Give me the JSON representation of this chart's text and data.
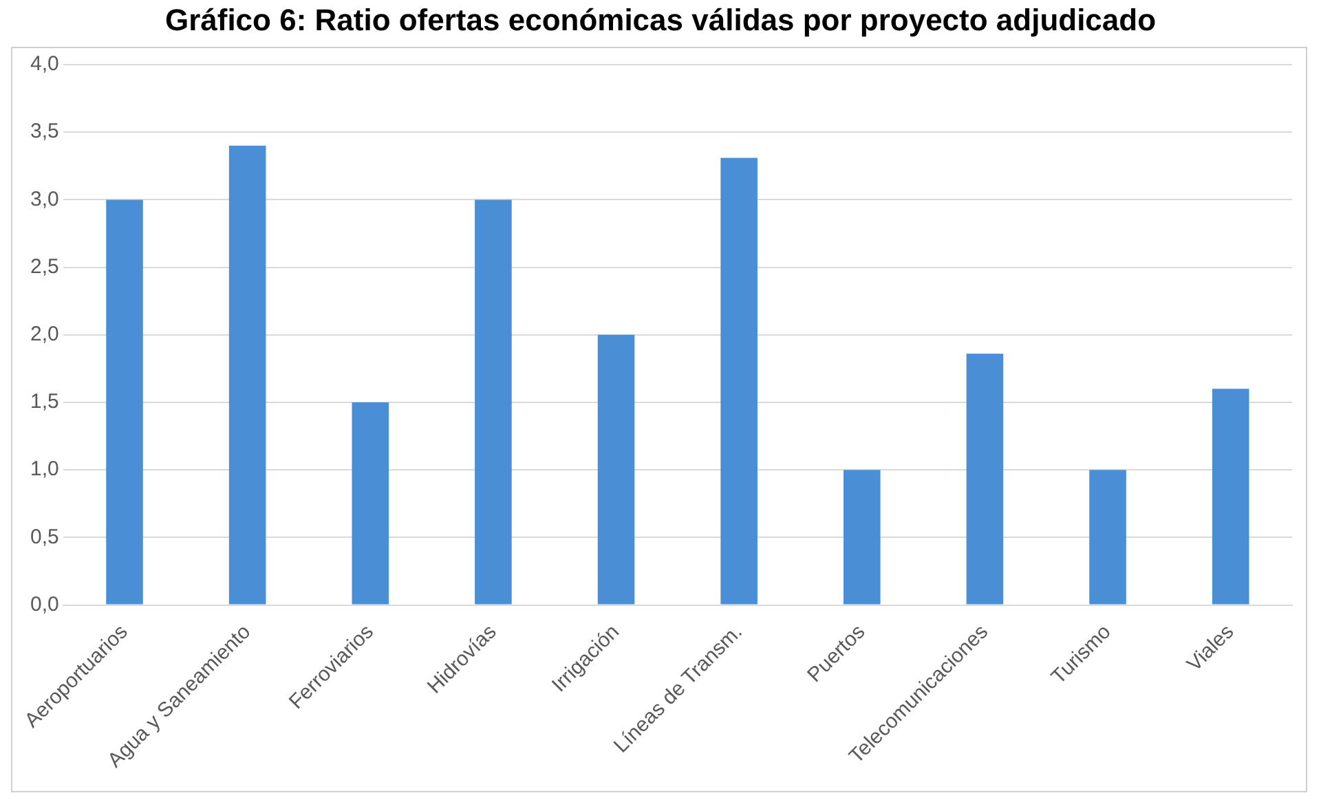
{
  "chart_data": {
    "type": "bar",
    "title": "Gráfico 6: Ratio ofertas económicas válidas por proyecto adjudicado",
    "categories": [
      "Aeroportuarios",
      "Agua y Saneamiento",
      "Ferroviarios",
      "Hidrovías",
      "Irrigación",
      "Líneas de Transm.",
      "Puertos",
      "Telecomunicaciones",
      "Turismo",
      "Viales"
    ],
    "values": [
      3.0,
      3.4,
      1.5,
      3.0,
      2.0,
      3.31,
      1.0,
      1.86,
      1.0,
      1.6
    ],
    "color": "#4a8fd6",
    "ylim": [
      0,
      4
    ],
    "yticks": [
      {
        "value": 0,
        "label": "0,0"
      },
      {
        "value": 0.5,
        "label": "0,5"
      },
      {
        "value": 1,
        "label": "1,0"
      },
      {
        "value": 1.5,
        "label": "1,5"
      },
      {
        "value": 2,
        "label": "2,0"
      },
      {
        "value": 2.5,
        "label": "2,5"
      },
      {
        "value": 3,
        "label": "3,0"
      },
      {
        "value": 3.5,
        "label": "3,5"
      },
      {
        "value": 4,
        "label": "4,0"
      }
    ],
    "grid": "y",
    "legend": false
  }
}
